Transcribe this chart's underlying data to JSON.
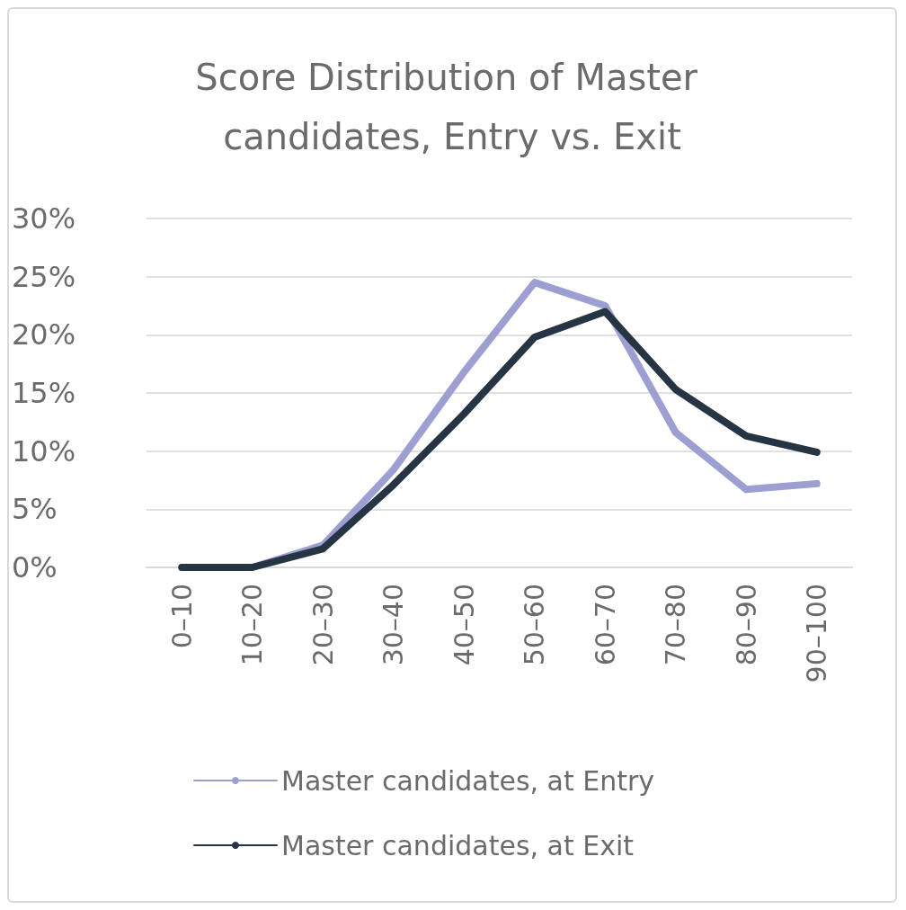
{
  "chart_data": {
    "type": "line",
    "title": "Score Distribution of Master candidates, Entry vs. Exit",
    "categories": [
      "0–10",
      "10–20",
      "20–30",
      "30–40",
      "40–50",
      "50–60",
      "60–70",
      "70–80",
      "80–90",
      "90–100"
    ],
    "series": [
      {
        "name": "Master candidates, at Entry",
        "color": "#9d9fd3",
        "values": [
          0,
          0,
          1.9,
          8.4,
          16.8,
          24.5,
          22.5,
          11.6,
          6.7,
          7.2
        ]
      },
      {
        "name": "Master candidates, at Exit",
        "color": "#263544",
        "values": [
          0,
          0,
          1.6,
          7.1,
          13.2,
          19.8,
          22.0,
          15.3,
          11.3,
          9.9
        ]
      }
    ],
    "ylim": [
      0,
      30
    ],
    "yticks": [
      {
        "value": 0,
        "label": "0%"
      },
      {
        "value": 5,
        "label": "5%"
      },
      {
        "value": 10,
        "label": "10%"
      },
      {
        "value": 15,
        "label": "15%"
      },
      {
        "value": 20,
        "label": "20%"
      },
      {
        "value": 25,
        "label": "25%"
      },
      {
        "value": 30,
        "label": "30%"
      }
    ],
    "grid": "y",
    "legend": "bottom",
    "marker": "none",
    "line_style": "solid"
  }
}
